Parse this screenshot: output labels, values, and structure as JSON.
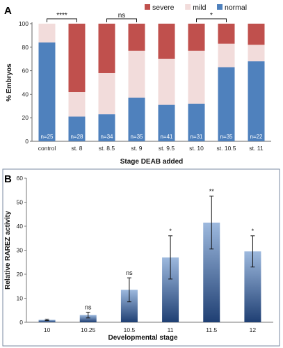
{
  "chart_data": [
    {
      "panel": "A",
      "type": "bar",
      "stacked": true,
      "categories": [
        "control",
        "st. 8",
        "st. 8.5",
        "st. 9",
        "st. 9.5",
        "st. 10",
        "st. 10.5",
        "st. 11"
      ],
      "n_labels": [
        "n=25",
        "n=28",
        "n=34",
        "n=35",
        "n=41",
        "n=31",
        "n=35",
        "n=22"
      ],
      "series": [
        {
          "name": "normal",
          "color": "#4f81bd",
          "values": [
            84,
            21,
            23,
            37,
            31,
            32,
            63,
            68
          ]
        },
        {
          "name": "mild",
          "color": "#f2dcdb",
          "values": [
            16,
            21,
            35,
            40,
            39,
            45,
            20,
            14
          ]
        },
        {
          "name": "severe",
          "color": "#c0504d",
          "values": [
            0,
            58,
            42,
            23,
            30,
            23,
            17,
            18
          ]
        }
      ],
      "legend_order": [
        "severe",
        "mild",
        "normal"
      ],
      "xlabel": "Stage DEAB added",
      "ylabel": "% Embryos",
      "ylim": [
        0,
        100
      ],
      "yticks": [
        0,
        20,
        40,
        60,
        80,
        100
      ],
      "legend": "top",
      "significance": [
        {
          "from": 0,
          "to": 1,
          "label": "****"
        },
        {
          "from": 2,
          "to": 3,
          "label": "ns"
        },
        {
          "from": 5,
          "to": 6,
          "label": "*"
        }
      ]
    },
    {
      "panel": "B",
      "type": "bar",
      "categories": [
        "10",
        "10.25",
        "10.5",
        "11",
        "11.5",
        "12"
      ],
      "values": [
        1,
        3,
        13.5,
        27,
        41.5,
        29.5
      ],
      "errors": [
        0.3,
        1.2,
        5,
        9,
        11,
        6.5
      ],
      "annotations": [
        "",
        "ns",
        "ns",
        "*",
        "**",
        "*"
      ],
      "xlabel": "Developmental stage",
      "ylabel": "Relative RAREZ activity",
      "ylim": [
        0,
        60
      ],
      "yticks": [
        0,
        10,
        20,
        30,
        40,
        50,
        60
      ],
      "grid": false,
      "colors": {
        "bar_top": "#9db9de",
        "bar_bottom": "#1f3f73"
      }
    }
  ]
}
